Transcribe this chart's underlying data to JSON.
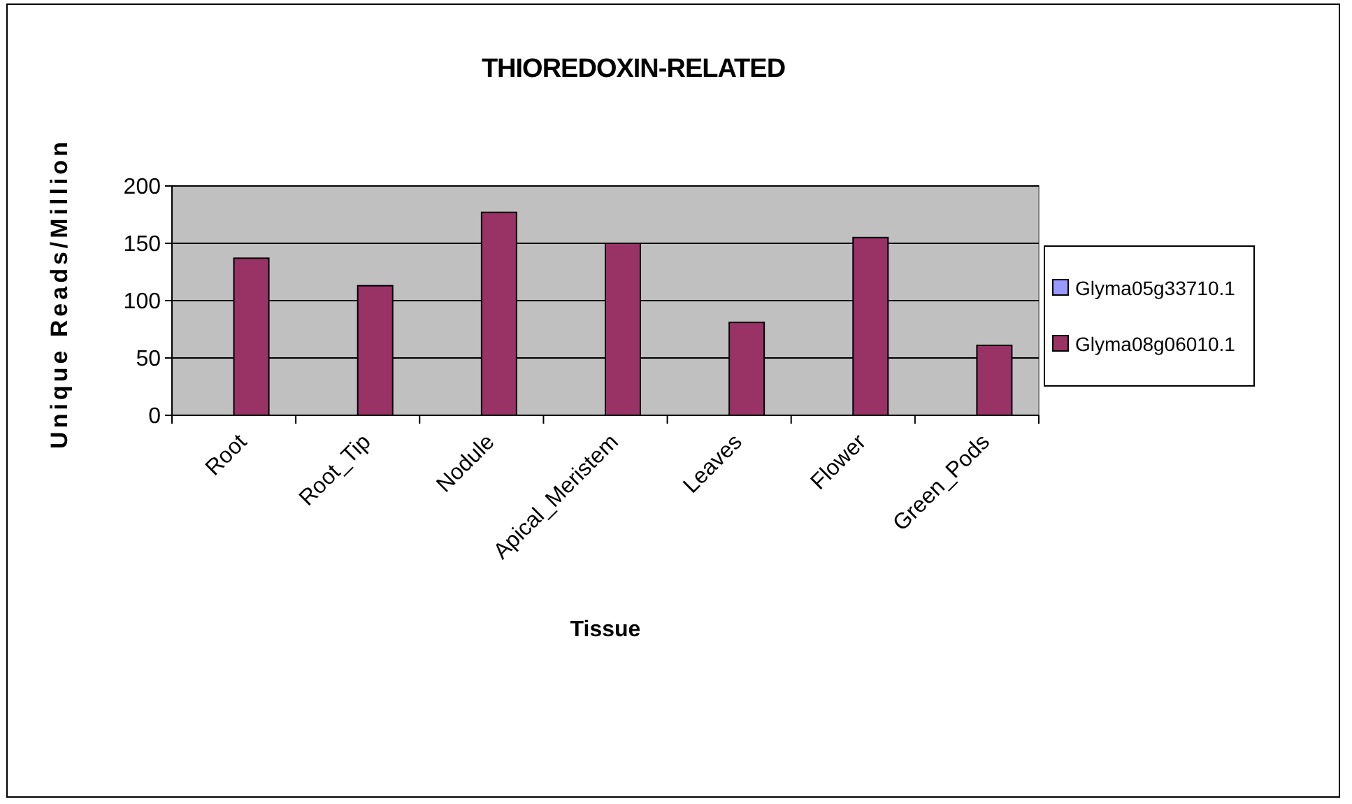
{
  "chart_data": {
    "type": "bar",
    "title": "THIOREDOXIN-RELATED",
    "xlabel": "Tissue",
    "ylabel": "Unique Reads/Million",
    "categories": [
      "Root",
      "Root_Tip",
      "Nodule",
      "Apical_Meristem",
      "Leaves",
      "Flower",
      "Green_Pods"
    ],
    "series": [
      {
        "name": "Glyma05g33710.1",
        "color": "#9999ff",
        "values": [
          0,
          0,
          0,
          0,
          0,
          0,
          0
        ]
      },
      {
        "name": "Glyma08g06010.1",
        "color": "#993366",
        "values": [
          137,
          113,
          177,
          150,
          81,
          155,
          61
        ]
      }
    ],
    "ylim": [
      0,
      200
    ],
    "yticks": [
      0,
      50,
      100,
      150,
      200
    ],
    "grid": "y",
    "legend": "right"
  }
}
